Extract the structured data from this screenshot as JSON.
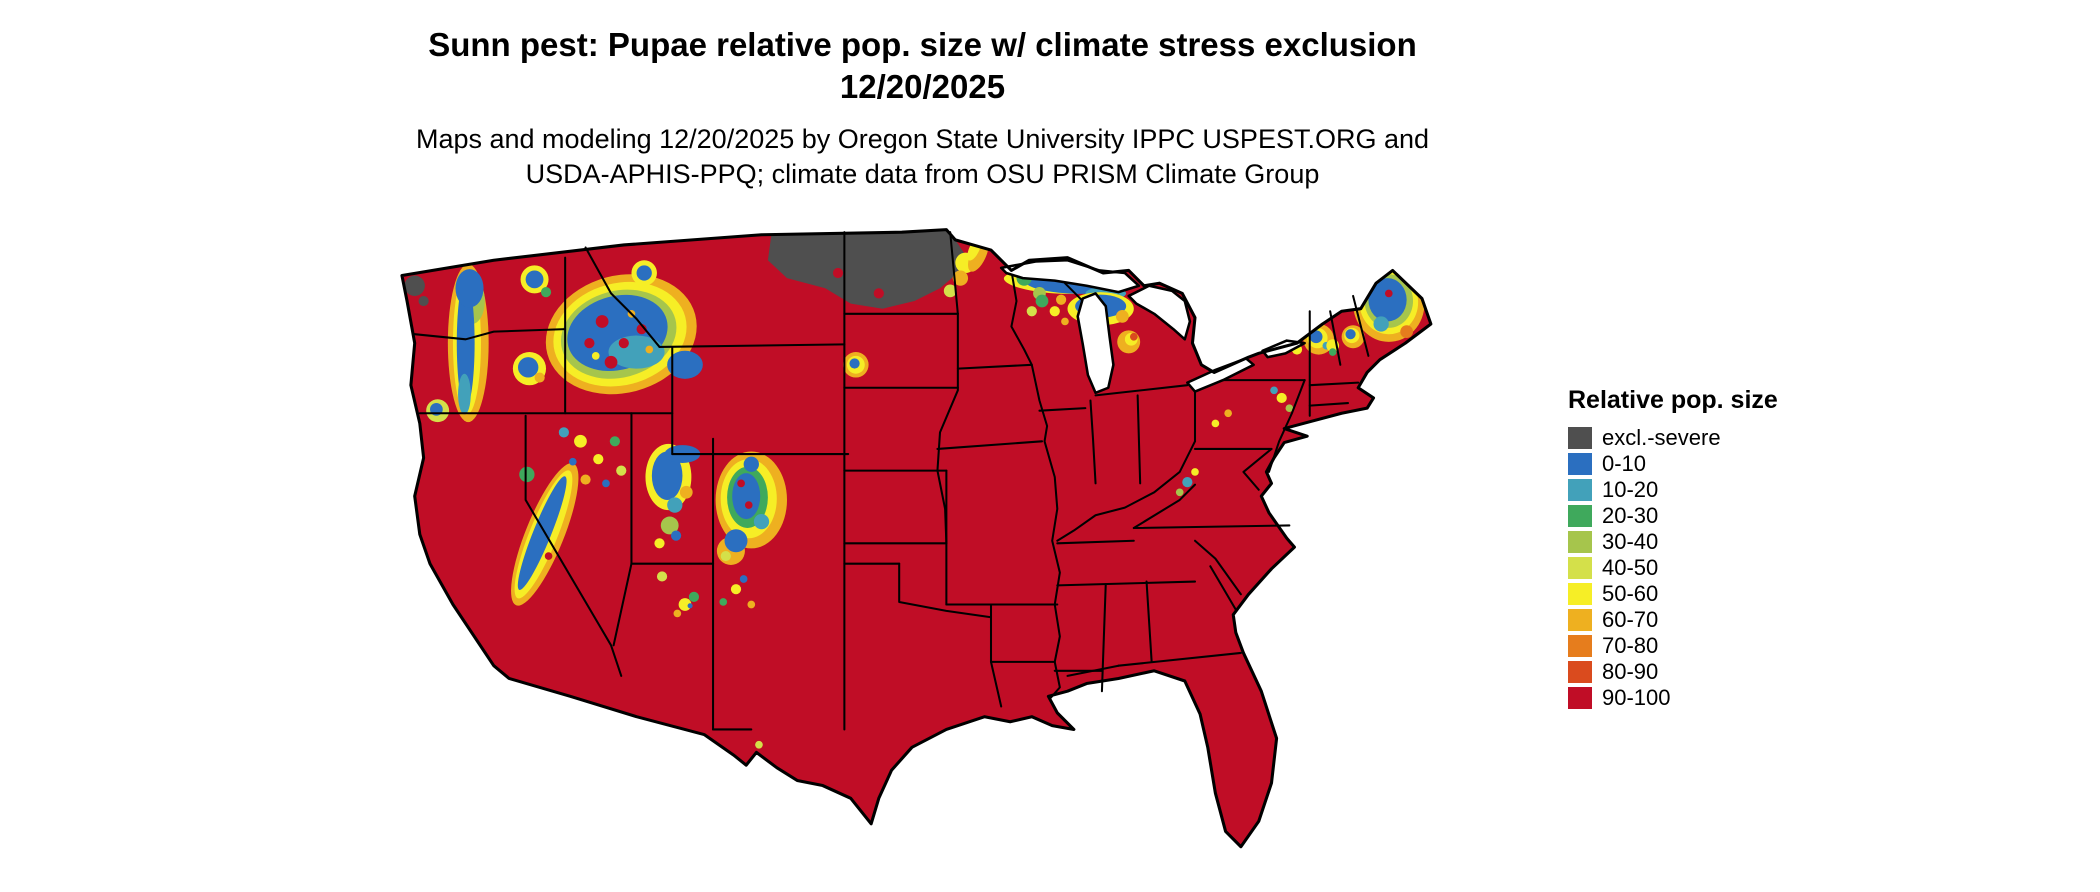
{
  "title": {
    "line1": "Sunn pest: Pupae relative pop. size w/ climate stress exclusion",
    "line2": "12/20/2025"
  },
  "subtitle": {
    "line1": "Maps and modeling 12/20/2025 by Oregon State University IPPC USPEST.ORG and",
    "line2": "USDA-APHIS-PPQ; climate data from OSU PRISM Climate Group"
  },
  "legend": {
    "title": "Relative pop. size",
    "items": [
      {
        "label": "excl.-severe",
        "color_key": "excl"
      },
      {
        "label": "0-10",
        "color_key": "v0_10"
      },
      {
        "label": "10-20",
        "color_key": "v10_20"
      },
      {
        "label": "20-30",
        "color_key": "v20_30"
      },
      {
        "label": "30-40",
        "color_key": "v30_40"
      },
      {
        "label": "40-50",
        "color_key": "v40_50"
      },
      {
        "label": "50-60",
        "color_key": "v50_60"
      },
      {
        "label": "60-70",
        "color_key": "v60_70"
      },
      {
        "label": "70-80",
        "color_key": "v70_80"
      },
      {
        "label": "80-90",
        "color_key": "v80_90"
      },
      {
        "label": "90-100",
        "color_key": "v90_100"
      }
    ]
  },
  "palette": {
    "excl": "#4f4f4f",
    "v0_10": "#2b6fc0",
    "v10_20": "#42a1ba",
    "v20_30": "#3fa95c",
    "v30_40": "#a6c54c",
    "v40_50": "#d4e04a",
    "v50_60": "#f6ee26",
    "v60_70": "#eeb020",
    "v70_80": "#e67d1d",
    "v80_90": "#da4b1e",
    "v90_100": "#c00d26",
    "water": "#ffffff",
    "outline": "#000000"
  },
  "map_summary": {
    "region": "Contiguous United States",
    "date": "12/20/2025",
    "dominant_class": "90-100",
    "areas": [
      {
        "area": "Most of the contiguous US",
        "class": "90-100"
      },
      {
        "area": "Eastern Montana, North Dakota, northwestern Minnesota",
        "class": "excl.-severe"
      },
      {
        "area": "Olympic Peninsula (small patch)",
        "class": "excl.-severe"
      },
      {
        "area": "Cascades, Sierra Nevada, Idaho / western Montana, Utah and Colorado Rockies",
        "class": "0-10 core with 10-60 mosaic and 50-70 fringe"
      },
      {
        "area": "Upper Great Lakes shorelines (Lake Superior, northern Lake Michigan)",
        "class": "0-10 to 70-80 mosaic"
      },
      {
        "area": "Northern Maine and northern New England",
        "class": "0-10 core with 30-90 fringe"
      },
      {
        "area": "Adirondacks, White Mountains, Appalachian highlands",
        "class": "scattered 0-60 specks"
      }
    ]
  }
}
